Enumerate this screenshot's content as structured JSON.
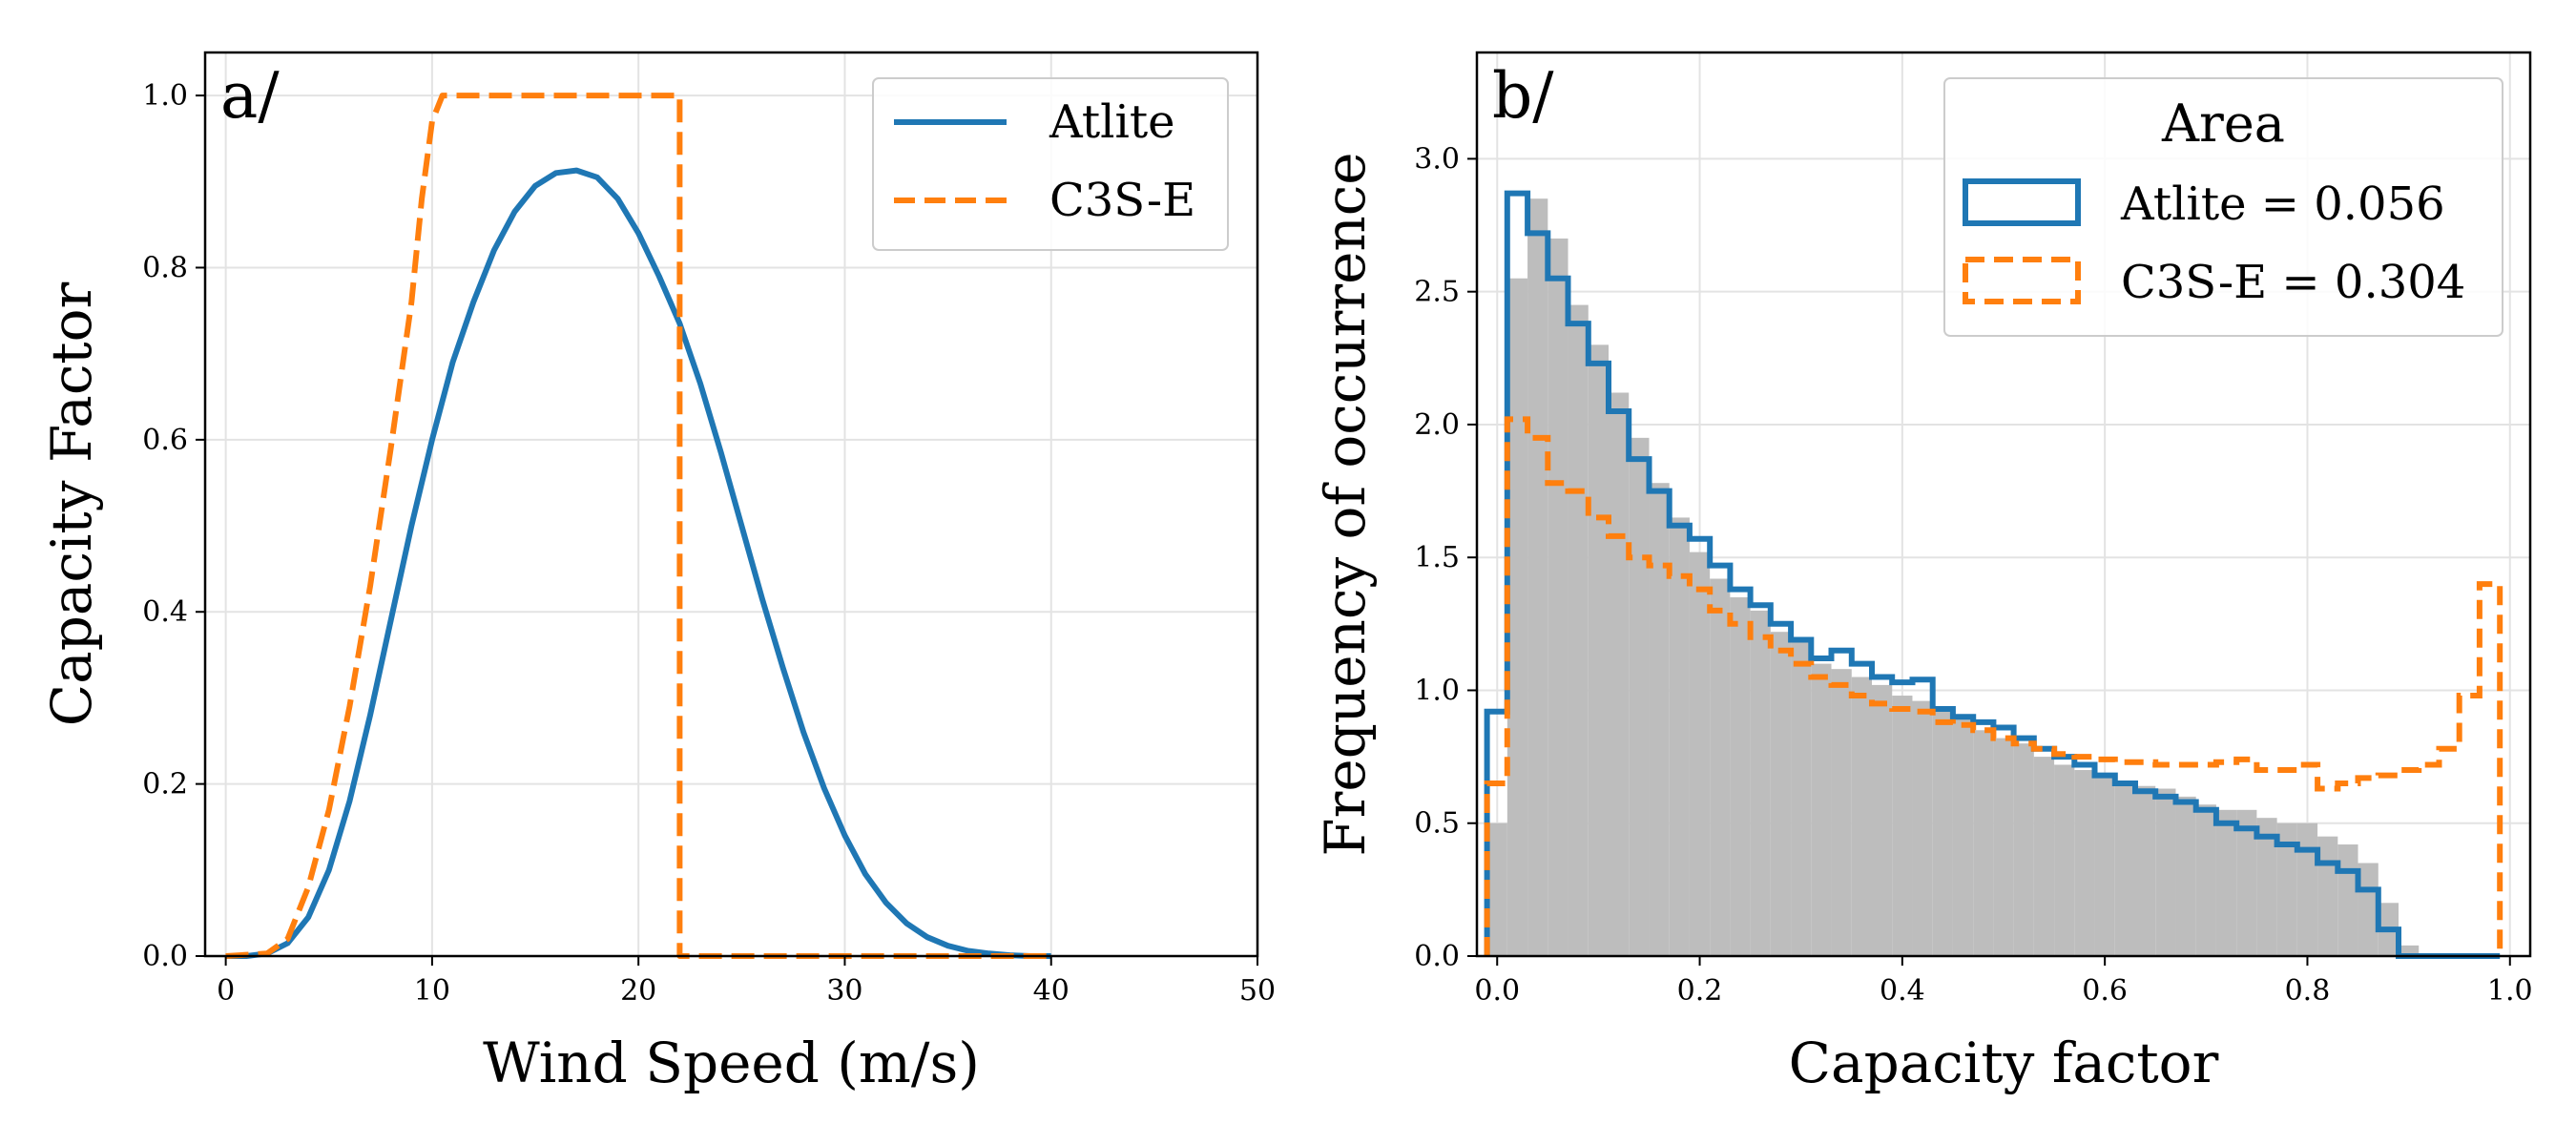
{
  "colors": {
    "atlite": "#1f77b4",
    "c3se": "#ff7f0e",
    "histogram": "#bdbdbd",
    "grid": "#e3e3e3"
  },
  "chart_data": [
    {
      "type": "line",
      "panel_label": "a/",
      "xlabel": "Wind Speed (m/s)",
      "ylabel": "Capacity Factor",
      "xlim": [
        -1,
        50
      ],
      "ylim": [
        0,
        1.05
      ],
      "xticks": [
        0,
        10,
        20,
        30,
        40,
        50
      ],
      "yticks": [
        0.0,
        0.2,
        0.4,
        0.6,
        0.8,
        1.0
      ],
      "xtick_labels": [
        "0",
        "10",
        "20",
        "30",
        "40",
        "50"
      ],
      "ytick_labels": [
        "0.0",
        "0.2",
        "0.4",
        "0.6",
        "0.8",
        "1.0"
      ],
      "grid": true,
      "legend_position": "top-right",
      "series": [
        {
          "name": "Atlite",
          "style": "solid",
          "x": [
            0,
            1,
            2,
            3,
            4,
            5,
            6,
            7,
            8,
            9,
            10,
            11,
            12,
            13,
            14,
            15,
            16,
            17,
            18,
            19,
            20,
            21,
            22,
            23,
            24,
            25,
            26,
            27,
            28,
            29,
            30,
            31,
            32,
            33,
            34,
            35,
            36,
            37,
            38,
            39,
            40
          ],
          "y": [
            0.0,
            0.0,
            0.003,
            0.015,
            0.045,
            0.1,
            0.18,
            0.28,
            0.39,
            0.5,
            0.6,
            0.69,
            0.76,
            0.82,
            0.865,
            0.895,
            0.91,
            0.913,
            0.905,
            0.88,
            0.84,
            0.79,
            0.735,
            0.665,
            0.585,
            0.5,
            0.415,
            0.335,
            0.26,
            0.195,
            0.14,
            0.095,
            0.062,
            0.038,
            0.022,
            0.012,
            0.006,
            0.003,
            0.001,
            0.0,
            0.0
          ]
        },
        {
          "name": "C3S-E",
          "style": "dashed",
          "x": [
            0,
            2,
            3,
            4,
            5,
            6,
            7,
            8,
            9,
            9.5,
            10,
            10.5,
            11,
            22,
            22,
            30,
            40
          ],
          "y": [
            0.0,
            0.003,
            0.02,
            0.08,
            0.17,
            0.29,
            0.43,
            0.59,
            0.76,
            0.88,
            0.97,
            1.0,
            1.0,
            1.0,
            0.0,
            0.0,
            0.0
          ]
        }
      ]
    },
    {
      "type": "histogram",
      "panel_label": "b/",
      "xlabel": "Capacity factor",
      "ylabel": "Frequency of occurrence",
      "xlim": [
        -0.02,
        1.02
      ],
      "ylim": [
        0,
        3.4
      ],
      "xticks": [
        0.0,
        0.2,
        0.4,
        0.6,
        0.8,
        1.0
      ],
      "yticks": [
        0.0,
        0.5,
        1.0,
        1.5,
        2.0,
        2.5,
        3.0
      ],
      "xtick_labels": [
        "0.0",
        "0.2",
        "0.4",
        "0.6",
        "0.8",
        "1.0"
      ],
      "ytick_labels": [
        "0.0",
        "0.5",
        "1.0",
        "1.5",
        "2.0",
        "2.5",
        "3.0"
      ],
      "grid": true,
      "legend_position": "top-right",
      "legend_title": "Area",
      "bin_edges": [
        -0.01,
        0.01,
        0.03,
        0.05,
        0.07,
        0.09,
        0.11,
        0.13,
        0.15,
        0.17,
        0.19,
        0.21,
        0.23,
        0.25,
        0.27,
        0.29,
        0.31,
        0.33,
        0.35,
        0.37,
        0.39,
        0.41,
        0.43,
        0.45,
        0.47,
        0.49,
        0.51,
        0.53,
        0.55,
        0.57,
        0.59,
        0.61,
        0.63,
        0.65,
        0.67,
        0.69,
        0.71,
        0.73,
        0.75,
        0.77,
        0.79,
        0.81,
        0.83,
        0.85,
        0.87,
        0.89,
        0.91,
        0.93,
        0.95,
        0.97,
        0.99
      ],
      "reference": [
        0.5,
        2.55,
        2.85,
        2.7,
        2.45,
        2.3,
        2.12,
        1.95,
        1.78,
        1.65,
        1.52,
        1.42,
        1.35,
        1.3,
        1.22,
        1.18,
        1.1,
        1.08,
        1.05,
        1.02,
        0.98,
        0.96,
        0.92,
        0.9,
        0.85,
        0.82,
        0.8,
        0.75,
        0.72,
        0.7,
        0.68,
        0.66,
        0.64,
        0.63,
        0.6,
        0.57,
        0.55,
        0.55,
        0.52,
        0.5,
        0.5,
        0.45,
        0.42,
        0.35,
        0.2,
        0.04,
        0.0,
        0.0,
        0.0,
        0.0
      ],
      "series": [
        {
          "name": "Atlite = 0.056",
          "style": "solid",
          "values": [
            0.92,
            2.87,
            2.72,
            2.55,
            2.38,
            2.23,
            2.05,
            1.87,
            1.75,
            1.62,
            1.57,
            1.47,
            1.38,
            1.32,
            1.25,
            1.19,
            1.12,
            1.15,
            1.1,
            1.05,
            1.03,
            1.04,
            0.93,
            0.9,
            0.88,
            0.86,
            0.82,
            0.78,
            0.75,
            0.72,
            0.68,
            0.65,
            0.62,
            0.6,
            0.58,
            0.55,
            0.5,
            0.48,
            0.45,
            0.42,
            0.4,
            0.35,
            0.32,
            0.25,
            0.1,
            0.0,
            0.0,
            0.0,
            0.0,
            0.0
          ]
        },
        {
          "name": "C3S-E = 0.304",
          "style": "dashed",
          "values": [
            0.65,
            2.02,
            1.95,
            1.78,
            1.75,
            1.65,
            1.58,
            1.5,
            1.47,
            1.43,
            1.38,
            1.3,
            1.25,
            1.2,
            1.15,
            1.1,
            1.05,
            1.02,
            0.98,
            0.95,
            0.93,
            0.92,
            0.88,
            0.87,
            0.85,
            0.82,
            0.8,
            0.78,
            0.76,
            0.75,
            0.74,
            0.73,
            0.73,
            0.72,
            0.72,
            0.72,
            0.73,
            0.74,
            0.7,
            0.7,
            0.72,
            0.63,
            0.65,
            0.67,
            0.68,
            0.7,
            0.72,
            0.78,
            0.98,
            1.4
          ]
        }
      ]
    }
  ]
}
